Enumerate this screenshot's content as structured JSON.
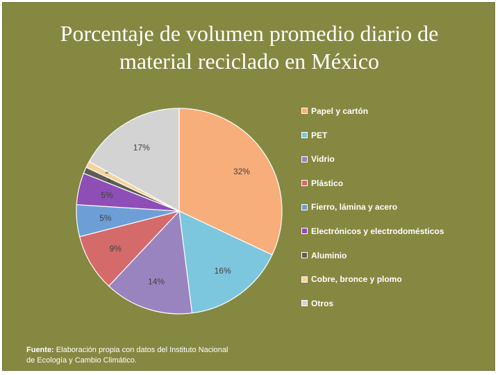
{
  "slide": {
    "title_line1": "Porcentaje de volumen promedio diario de",
    "title_line2": "material reciclado en México",
    "source_label": "Fuente:",
    "source_text": " Elaboración propia con datos del Instituto Nacional de Ecología y Cambio Climático."
  },
  "chart_data": {
    "type": "pie",
    "title": "Porcentaje de volumen promedio diario de material reciclado en México",
    "legend_position": "right",
    "slices": [
      {
        "label": "Papel y cartón",
        "value": 32,
        "display": "32%",
        "color": "#F8AE7A"
      },
      {
        "label": "PET",
        "value": 16,
        "display": "16%",
        "color": "#7CC7DD"
      },
      {
        "label": "Vidrio",
        "value": 14,
        "display": "14%",
        "color": "#9A84BF"
      },
      {
        "label": "Plástico",
        "value": 9,
        "display": "9%",
        "color": "#D46A6A"
      },
      {
        "label": "Fierro, lámina y acero",
        "value": 5,
        "display": "5%",
        "color": "#6D9FD6"
      },
      {
        "label": "Electrónicos y electrodomésticos",
        "value": 5,
        "display": "5%",
        "color": "#8E4EB6"
      },
      {
        "label": "Aluminio",
        "value": 1,
        "display": "1%",
        "color": "#5E5E55"
      },
      {
        "label": "Cobre, bronce  y plomo",
        "value": 1,
        "display": "1%",
        "color": "#F3D49A"
      },
      {
        "label": "Otros",
        "value": 17,
        "display": "17%",
        "color": "#D3D3D3"
      }
    ]
  }
}
